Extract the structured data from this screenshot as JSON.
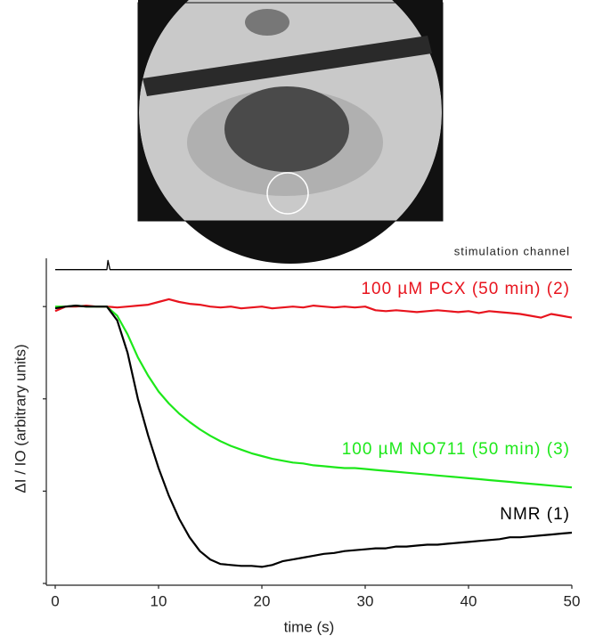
{
  "chart_data": {
    "type": "line",
    "x_label": "time (s)",
    "y_label": "ΔI / IO (arbitrary units)",
    "xlim": [
      0,
      50
    ],
    "xticks": [
      0,
      10,
      20,
      30,
      40,
      50
    ],
    "ylim": [
      0,
      3.6
    ],
    "yticks": [
      0,
      1,
      2,
      3
    ],
    "x": [
      0,
      1,
      2,
      3,
      4,
      5,
      6,
      7,
      8,
      9,
      10,
      11,
      12,
      13,
      14,
      15,
      16,
      17,
      18,
      19,
      20,
      21,
      22,
      23,
      24,
      25,
      26,
      27,
      28,
      29,
      30,
      31,
      32,
      33,
      34,
      35,
      36,
      37,
      38,
      39,
      40,
      41,
      42,
      43,
      44,
      45,
      46,
      47,
      48,
      49,
      50
    ],
    "series": [
      {
        "name": "100 µM PCX (50 min) (2)",
        "color": "#e8141e",
        "values": [
          2.95,
          3.0,
          3.0,
          3.01,
          3.0,
          3.0,
          2.99,
          3.0,
          3.01,
          3.02,
          3.05,
          3.08,
          3.05,
          3.03,
          3.02,
          3.0,
          2.99,
          3.0,
          2.98,
          2.99,
          3.0,
          2.98,
          2.99,
          3.0,
          2.99,
          3.01,
          3.0,
          2.99,
          3.0,
          2.99,
          3.0,
          2.96,
          2.95,
          2.96,
          2.95,
          2.94,
          2.95,
          2.96,
          2.95,
          2.94,
          2.95,
          2.93,
          2.95,
          2.94,
          2.93,
          2.92,
          2.9,
          2.88,
          2.92,
          2.9,
          2.88
        ]
      },
      {
        "name": "100 µM NO711 (50 min) (3)",
        "color": "#1de81a",
        "values": [
          3.0,
          3.0,
          3.01,
          3.0,
          3.0,
          3.0,
          2.9,
          2.7,
          2.45,
          2.25,
          2.08,
          1.95,
          1.84,
          1.75,
          1.67,
          1.6,
          1.54,
          1.49,
          1.45,
          1.41,
          1.38,
          1.35,
          1.33,
          1.31,
          1.3,
          1.28,
          1.27,
          1.26,
          1.25,
          1.25,
          1.24,
          1.23,
          1.22,
          1.21,
          1.2,
          1.19,
          1.18,
          1.17,
          1.16,
          1.15,
          1.14,
          1.13,
          1.12,
          1.11,
          1.1,
          1.09,
          1.08,
          1.07,
          1.06,
          1.05,
          1.04
        ]
      },
      {
        "name": "NMR (1)",
        "color": "#000000",
        "values": [
          2.98,
          3.0,
          3.01,
          3.0,
          3.0,
          3.0,
          2.85,
          2.5,
          2.0,
          1.6,
          1.25,
          0.95,
          0.7,
          0.5,
          0.35,
          0.26,
          0.21,
          0.2,
          0.19,
          0.19,
          0.18,
          0.2,
          0.24,
          0.26,
          0.28,
          0.3,
          0.32,
          0.33,
          0.35,
          0.36,
          0.37,
          0.38,
          0.38,
          0.4,
          0.4,
          0.41,
          0.42,
          0.42,
          0.43,
          0.44,
          0.45,
          0.46,
          0.47,
          0.48,
          0.5,
          0.5,
          0.51,
          0.52,
          0.53,
          0.54,
          0.55
        ]
      },
      {
        "name": "stimulation channel",
        "color": "#000000",
        "x": [
          0,
          5,
          5.1,
          5.3,
          50
        ],
        "values": [
          3.4,
          3.4,
          3.5,
          3.4,
          3.4
        ]
      }
    ]
  }
}
